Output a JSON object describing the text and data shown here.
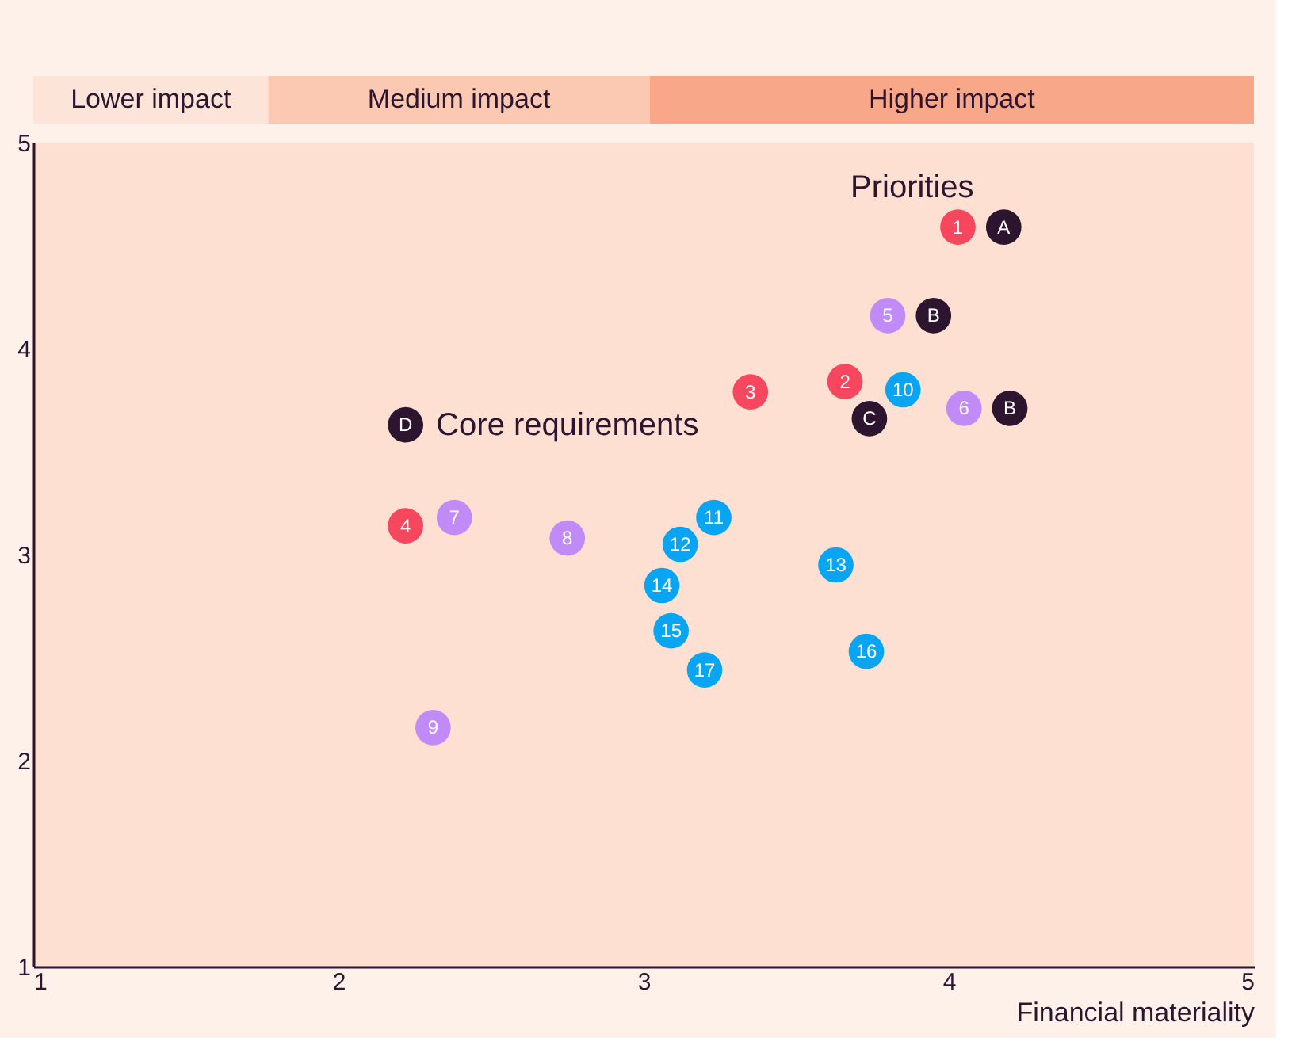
{
  "chart_data": {
    "type": "scatter",
    "xlabel": "Financial materiality",
    "xlim": [
      1,
      5
    ],
    "ylim": [
      1,
      5
    ],
    "xticks": [
      1,
      2,
      3,
      4,
      5
    ],
    "yticks": [
      1,
      2,
      3,
      4,
      5
    ],
    "grid": false,
    "marker": "circle",
    "series": [
      {
        "name": "1",
        "color": "#f7475f",
        "x": [
          4.03
        ],
        "values": [
          4.59
        ]
      },
      {
        "name": "2",
        "color": "#f7475f",
        "x": [
          3.66
        ],
        "values": [
          3.84
        ]
      },
      {
        "name": "3",
        "color": "#f7475f",
        "x": [
          3.35
        ],
        "values": [
          3.79
        ]
      },
      {
        "name": "4",
        "color": "#f7475f",
        "x": [
          2.22
        ],
        "values": [
          3.14
        ]
      },
      {
        "name": "5",
        "color": "#c08af7",
        "x": [
          3.8
        ],
        "values": [
          4.16
        ]
      },
      {
        "name": "6",
        "color": "#c08af7",
        "x": [
          4.05
        ],
        "values": [
          3.71
        ]
      },
      {
        "name": "7",
        "color": "#c08af7",
        "x": [
          2.38
        ],
        "values": [
          3.18
        ]
      },
      {
        "name": "8",
        "color": "#c08af7",
        "x": [
          2.75
        ],
        "values": [
          3.08
        ]
      },
      {
        "name": "9",
        "color": "#c08af7",
        "x": [
          2.31
        ],
        "values": [
          2.16
        ]
      },
      {
        "name": "10",
        "color": "#0aa5f2",
        "x": [
          3.85
        ],
        "values": [
          3.8
        ]
      },
      {
        "name": "11",
        "color": "#0aa5f2",
        "x": [
          3.23
        ],
        "values": [
          3.18
        ]
      },
      {
        "name": "12",
        "color": "#0aa5f2",
        "x": [
          3.12
        ],
        "values": [
          3.05
        ]
      },
      {
        "name": "13",
        "color": "#0aa5f2",
        "x": [
          3.63
        ],
        "values": [
          2.95
        ]
      },
      {
        "name": "14",
        "color": "#0aa5f2",
        "x": [
          3.06
        ],
        "values": [
          2.85
        ]
      },
      {
        "name": "15",
        "color": "#0aa5f2",
        "x": [
          3.09
        ],
        "values": [
          2.63
        ]
      },
      {
        "name": "16",
        "color": "#0aa5f2",
        "x": [
          3.73
        ],
        "values": [
          2.53
        ]
      },
      {
        "name": "17",
        "color": "#0aa5f2",
        "x": [
          3.2
        ],
        "values": [
          2.44
        ]
      },
      {
        "name": "A",
        "color": "#2d1530",
        "x": [
          4.18
        ],
        "values": [
          4.59
        ]
      },
      {
        "name": "B",
        "color": "#2d1530",
        "x": [
          3.95
        ],
        "values": [
          4.16
        ]
      },
      {
        "name": "C",
        "color": "#2d1530",
        "x": [
          3.74
        ],
        "values": [
          3.66
        ]
      },
      {
        "name": "B",
        "color": "#2d1530",
        "x": [
          4.2
        ],
        "values": [
          3.71
        ]
      },
      {
        "name": "D",
        "color": "#2d1530",
        "x": [
          2.22
        ],
        "values": [
          3.63
        ]
      }
    ],
    "annotations": [
      "Priorities",
      "Core requirements",
      "Lower impact",
      "Medium impact",
      "Higher impact"
    ]
  }
}
